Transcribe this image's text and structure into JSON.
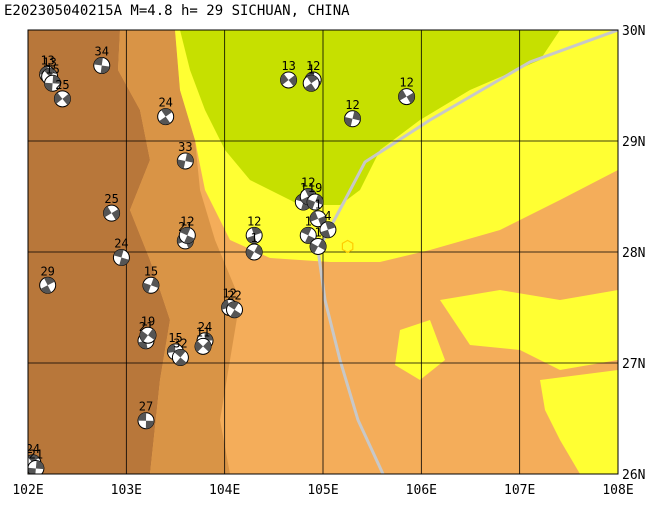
{
  "title": "E202305040215A M=4.8 h= 29 SICHUAN, CHINA",
  "map": {
    "lon_range": [
      102,
      108
    ],
    "lat_range": [
      26,
      30
    ],
    "lon_labels": [
      "102E",
      "103E",
      "104E",
      "105E",
      "106E",
      "107E",
      "108E"
    ],
    "lat_labels": [
      "30N",
      "29N",
      "28N",
      "27N",
      "26N"
    ],
    "colors": {
      "lowland": "#f4ad5a",
      "highland": "#d99446",
      "mountain": "#b8773a",
      "plain_yellow": "#ffff33",
      "basin_green": "#c6e000",
      "boundary": "#c8c8c8",
      "grid": "#000000",
      "beachball_dark": "#555555",
      "beachball_light": "#ffffff",
      "epicenter": "#ffcc00"
    },
    "main_event": {
      "lon": 105.25,
      "lat": 28.05,
      "symbol": "hexagon"
    },
    "events": [
      {
        "lon": 102.2,
        "lat": 29.6,
        "depth": "13"
      },
      {
        "lon": 102.22,
        "lat": 29.58,
        "depth": "13"
      },
      {
        "lon": 102.25,
        "lat": 29.52,
        "depth": "15"
      },
      {
        "lon": 102.35,
        "lat": 29.38,
        "depth": "25"
      },
      {
        "lon": 102.75,
        "lat": 29.68,
        "depth": "34"
      },
      {
        "lon": 103.4,
        "lat": 29.22,
        "depth": "24"
      },
      {
        "lon": 103.6,
        "lat": 28.82,
        "depth": "33"
      },
      {
        "lon": 102.85,
        "lat": 28.35,
        "depth": "25"
      },
      {
        "lon": 102.95,
        "lat": 27.95,
        "depth": "24"
      },
      {
        "lon": 102.2,
        "lat": 27.7,
        "depth": "29"
      },
      {
        "lon": 103.25,
        "lat": 27.7,
        "depth": "15"
      },
      {
        "lon": 103.6,
        "lat": 28.1,
        "depth": "21"
      },
      {
        "lon": 103.62,
        "lat": 28.15,
        "depth": "12"
      },
      {
        "lon": 104.3,
        "lat": 28.15,
        "depth": "12"
      },
      {
        "lon": 104.3,
        "lat": 28.0,
        "depth": "1"
      },
      {
        "lon": 104.05,
        "lat": 27.5,
        "depth": "12"
      },
      {
        "lon": 104.1,
        "lat": 27.48,
        "depth": "22"
      },
      {
        "lon": 103.2,
        "lat": 27.2,
        "depth": "21"
      },
      {
        "lon": 103.22,
        "lat": 27.25,
        "depth": "19"
      },
      {
        "lon": 103.5,
        "lat": 27.1,
        "depth": "15"
      },
      {
        "lon": 103.55,
        "lat": 27.05,
        "depth": "32"
      },
      {
        "lon": 103.8,
        "lat": 27.2,
        "depth": "24"
      },
      {
        "lon": 103.78,
        "lat": 27.15,
        "depth": "11"
      },
      {
        "lon": 103.2,
        "lat": 26.48,
        "depth": "27"
      },
      {
        "lon": 102.05,
        "lat": 26.1,
        "depth": "24"
      },
      {
        "lon": 102.08,
        "lat": 26.05,
        "depth": "21"
      },
      {
        "lon": 104.65,
        "lat": 29.55,
        "depth": "13"
      },
      {
        "lon": 104.9,
        "lat": 29.55,
        "depth": "12"
      },
      {
        "lon": 104.88,
        "lat": 29.52,
        "depth": "1"
      },
      {
        "lon": 105.3,
        "lat": 29.2,
        "depth": "12"
      },
      {
        "lon": 105.85,
        "lat": 29.4,
        "depth": "12"
      },
      {
        "lon": 104.8,
        "lat": 28.45,
        "depth": "1"
      },
      {
        "lon": 104.85,
        "lat": 28.5,
        "depth": "12"
      },
      {
        "lon": 104.92,
        "lat": 28.45,
        "depth": "19"
      },
      {
        "lon": 104.95,
        "lat": 28.3,
        "depth": "1"
      },
      {
        "lon": 104.85,
        "lat": 28.15,
        "depth": "1"
      },
      {
        "lon": 105.05,
        "lat": 28.2,
        "depth": "4"
      },
      {
        "lon": 104.95,
        "lat": 28.05,
        "depth": "1"
      }
    ]
  }
}
